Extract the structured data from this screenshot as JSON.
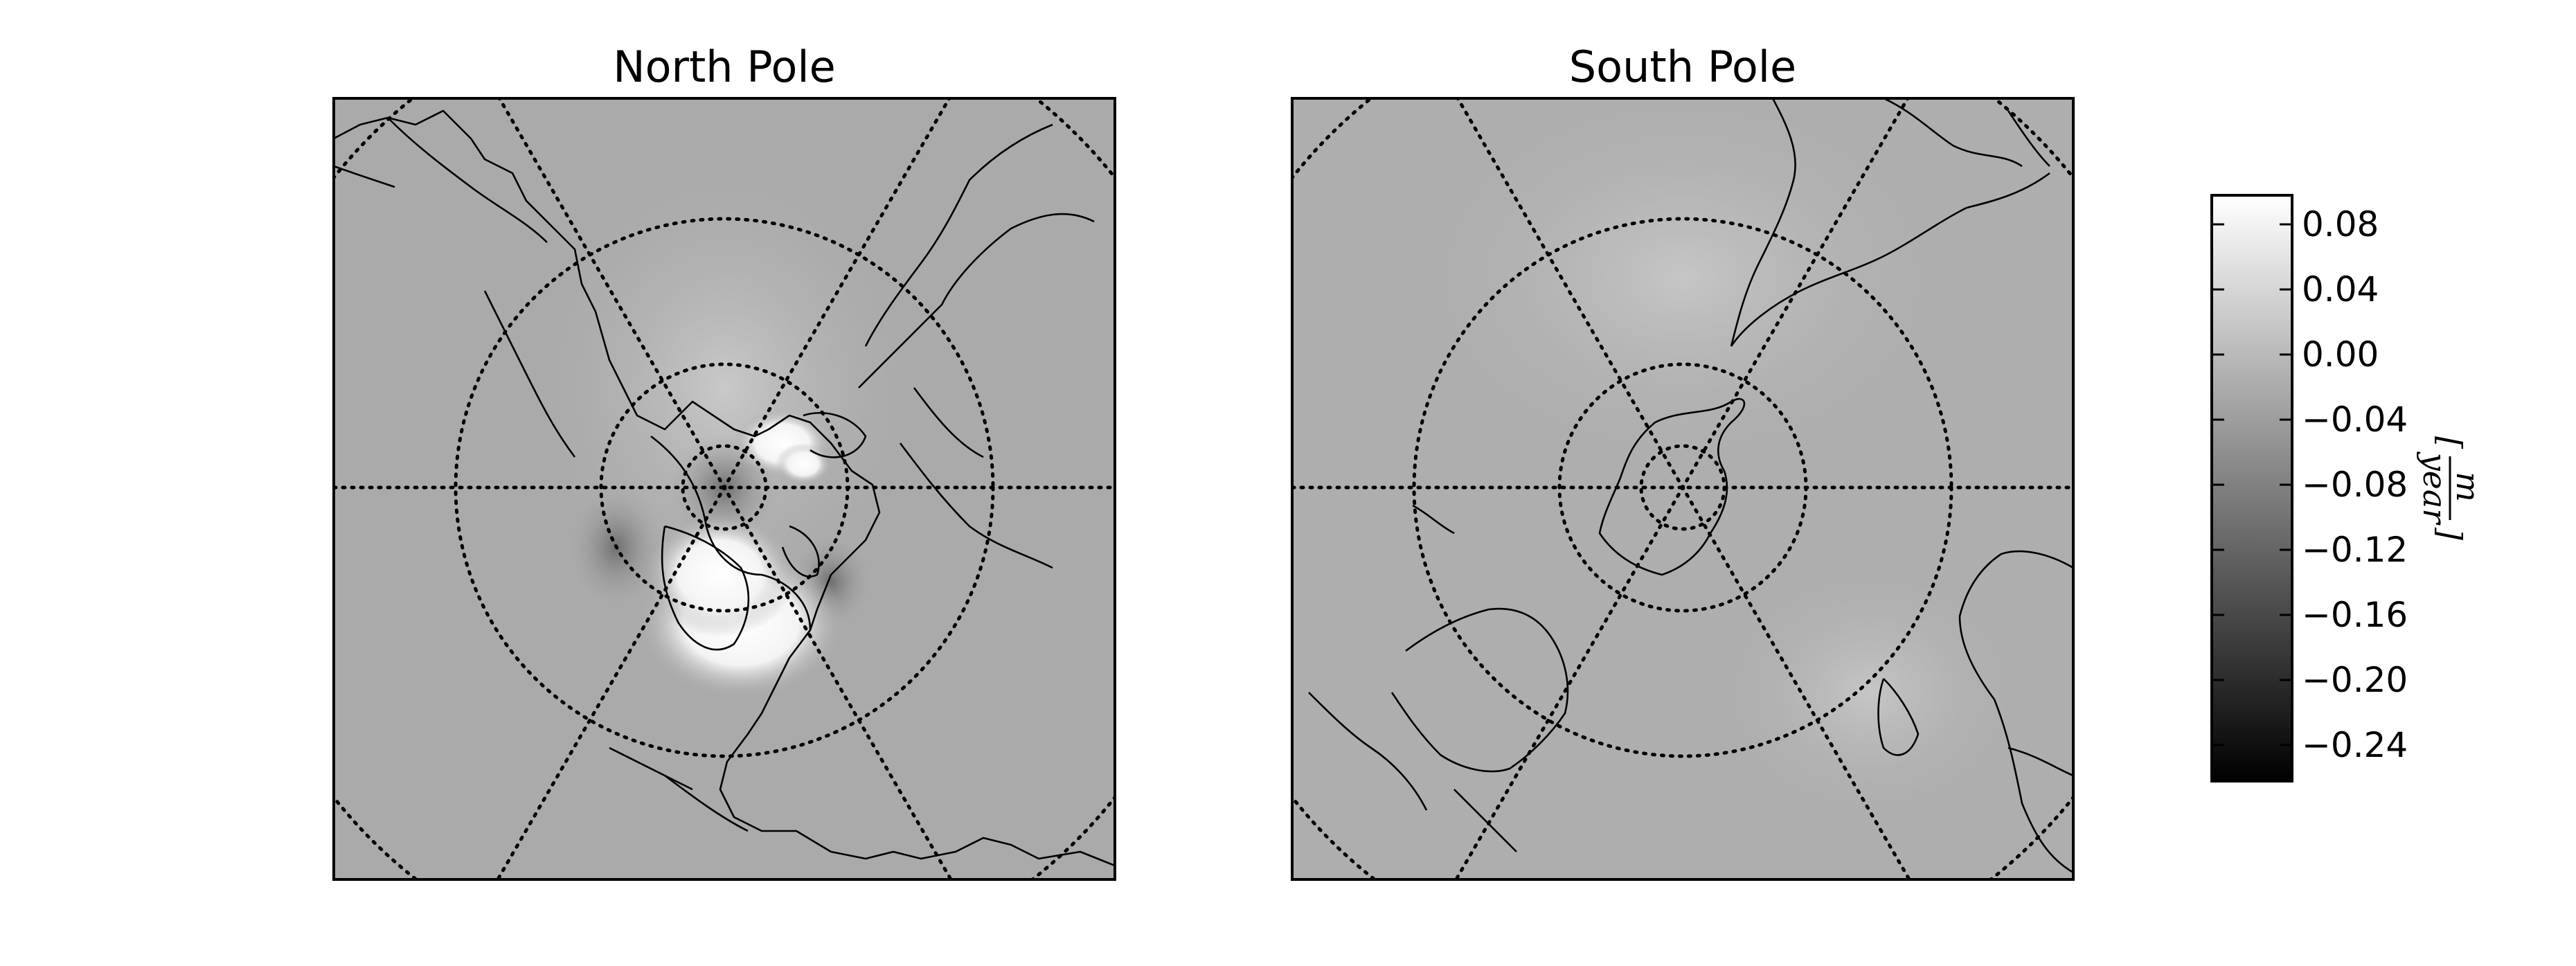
{
  "panels": [
    {
      "title": "North Pole",
      "pole": "north"
    },
    {
      "title": "South Pole",
      "pole": "south"
    }
  ],
  "colorbar": {
    "ticks": [
      "0.08",
      "0.04",
      "0.00",
      "−0.04",
      "−0.08",
      "−0.12",
      "−0.16",
      "−0.20",
      "−0.24"
    ],
    "unit": {
      "numerator": "m",
      "denominator": "year"
    },
    "colormap": "grayscale",
    "min_color": "#000000",
    "max_color": "#ffffff"
  }
}
